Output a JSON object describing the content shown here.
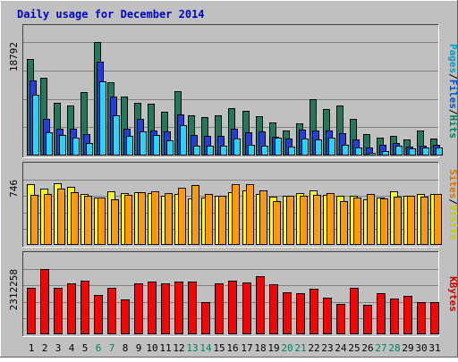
{
  "chart_data": {
    "type": "bar",
    "title": "Daily usage for December 2014",
    "categories": [
      "1",
      "2",
      "3",
      "4",
      "5",
      "6",
      "7",
      "8",
      "9",
      "10",
      "11",
      "12",
      "13",
      "14",
      "15",
      "16",
      "17",
      "18",
      "19",
      "20",
      "21",
      "22",
      "23",
      "24",
      "25",
      "26",
      "27",
      "28",
      "29",
      "30",
      "31"
    ],
    "weekend_days": [
      "6",
      "7",
      "13",
      "14",
      "20",
      "21",
      "27",
      "28"
    ],
    "panels": [
      {
        "id": "top",
        "ymax_label": "18792",
        "ylim": [
          0,
          18792
        ],
        "right_labels": [
          {
            "text": "Pages",
            "color": "#00a0c8"
          },
          {
            "text": "/",
            "color": "#000000"
          },
          {
            "text": "Files",
            "color": "#0050d0"
          },
          {
            "text": "/",
            "color": "#000000"
          },
          {
            "text": "Hits",
            "color": "#008060"
          }
        ],
        "series": [
          {
            "name": "Hits",
            "color": "#1d7a5c",
            "values": [
              16000,
              12900,
              8700,
              8300,
              10500,
              18792,
              12200,
              9800,
              8700,
              8600,
              7300,
              10700,
              6600,
              6300,
              6600,
              7800,
              7400,
              6500,
              5500,
              4200,
              5300,
              9300,
              7700,
              8300,
              6000,
              3500,
              2900,
              3300,
              2700,
              4100,
              2800
            ]
          },
          {
            "name": "Files",
            "color": "#1f3fe0",
            "values": [
              12500,
              6100,
              4500,
              4500,
              3500,
              15500,
              9700,
              4500,
              6000,
              4200,
              4000,
              6800,
              3400,
              3300,
              3300,
              4400,
              3800,
              4000,
              3100,
              2800,
              4300,
              4100,
              4100,
              3700,
              2700,
              1400,
              1800,
              2000,
              1500,
              1700,
              1800
            ]
          },
          {
            "name": "Pages",
            "color": "#20d8ff",
            "values": [
              10000,
              3800,
              3400,
              3000,
              2000,
              12300,
              6600,
              3200,
              4000,
              3400,
              2500,
              5100,
              1700,
              1700,
              1700,
              2800,
              1800,
              1600,
              3000,
              1500,
              2800,
              2600,
              3000,
              1800,
              1400,
              500,
              700,
              1600,
              1200,
              1400,
              1300
            ]
          }
        ]
      },
      {
        "id": "middle",
        "ymax_label": "746",
        "ylim": [
          0,
          746
        ],
        "right_labels": [
          {
            "text": "Sites",
            "color": "#e07000"
          },
          {
            "text": "/",
            "color": "#000000"
          },
          {
            "text": "Visits",
            "color": "#c8c800"
          }
        ],
        "series": [
          {
            "name": "Visits",
            "color": "#ffff00",
            "values": [
              690,
              640,
              710,
              660,
              580,
              540,
              610,
              590,
              600,
              590,
              560,
              580,
              530,
              540,
              560,
              600,
              620,
              580,
              550,
              560,
              590,
              620,
              570,
              560,
              560,
              520,
              540,
              610,
              560,
              580,
              580
            ]
          },
          {
            "name": "Sites",
            "color": "#ff9a00",
            "values": [
              570,
              580,
              640,
              600,
              560,
              540,
              520,
              570,
              600,
              610,
              590,
              650,
              680,
              580,
              560,
              690,
              700,
              620,
              500,
              560,
              560,
              570,
              590,
              500,
              540,
              580,
              530,
              550,
              560,
              550,
              580
            ]
          }
        ]
      },
      {
        "id": "bottom",
        "ymax_label": "2312258",
        "ylim": [
          0,
          2312258
        ],
        "right_labels": [
          {
            "text": "KBytes",
            "color": "#d00000"
          }
        ],
        "series": [
          {
            "name": "KBytes",
            "color": "#ff0000",
            "values": [
              1640000,
              2312258,
              1660000,
              1790000,
              1900000,
              1380000,
              1650000,
              1250000,
              1820000,
              1870000,
              1800000,
              1870000,
              1870000,
              1140000,
              1800000,
              1890000,
              1840000,
              2060000,
              1770000,
              1500000,
              1470000,
              1600000,
              1310000,
              1090000,
              1660000,
              1060000,
              1460000,
              1260000,
              1370000,
              1140000,
              1140000
            ]
          }
        ]
      }
    ]
  }
}
